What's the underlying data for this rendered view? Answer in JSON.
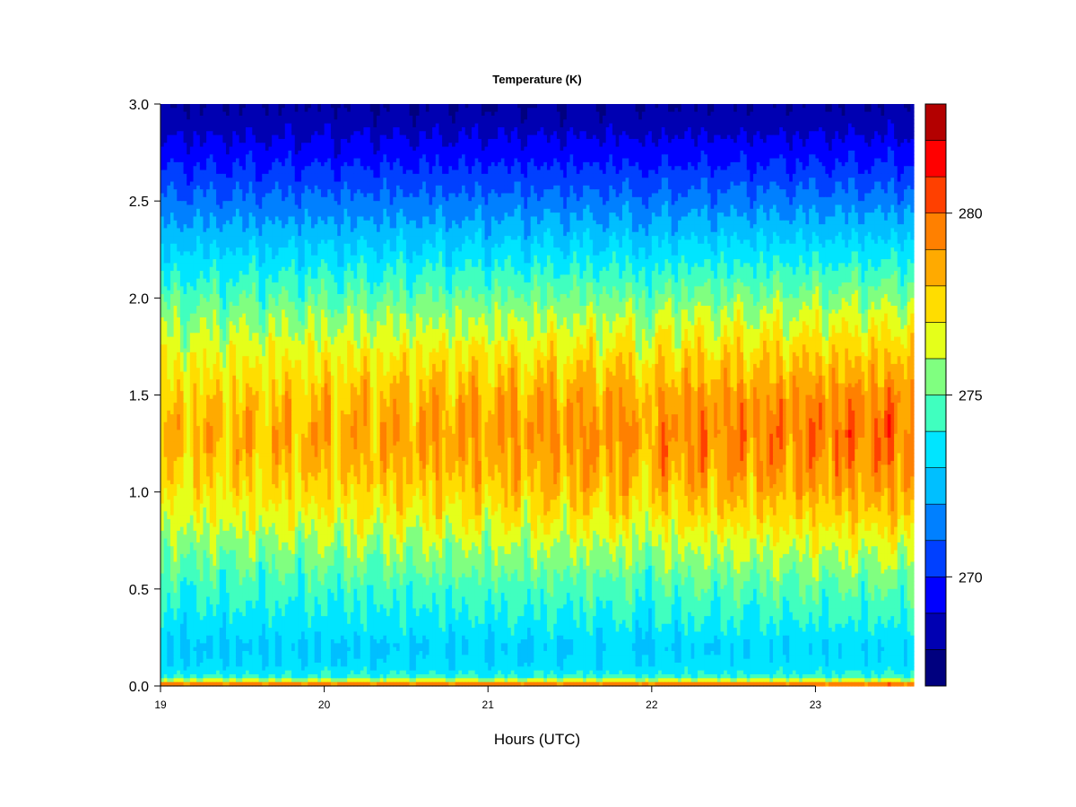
{
  "chart_data": {
    "type": "heatmap",
    "title": "Temperature (K)",
    "xlabel": "Hours (UTC)",
    "ylabel": "",
    "xlim": [
      19,
      23.6
    ],
    "ylim": [
      0,
      3.0
    ],
    "x_ticks": [
      19,
      20,
      21,
      22,
      23
    ],
    "x_tick_labels": [
      "19",
      "20",
      "21",
      "22",
      "23"
    ],
    "y_ticks": [
      0,
      0.5,
      1.0,
      1.5,
      2.0,
      2.5,
      3.0
    ],
    "y_tick_labels": [
      "0.0",
      "0.5",
      "1.0",
      "1.5",
      "2.0",
      "2.5",
      "3.0"
    ],
    "colorbar": {
      "min": 267,
      "max": 283,
      "levels": [
        267,
        268,
        269,
        270,
        271,
        272,
        273,
        274,
        275,
        276,
        277,
        278,
        279,
        280,
        281,
        282,
        283
      ],
      "colors": [
        "#00007f",
        "#0000b2",
        "#0000ff",
        "#0040ff",
        "#0080ff",
        "#00bfff",
        "#00e5ff",
        "#40ffbf",
        "#80ff80",
        "#e5ff1a",
        "#ffdd00",
        "#ffaa00",
        "#ff8000",
        "#ff4000",
        "#ff0000",
        "#b30000"
      ],
      "ticks": [
        270,
        275,
        280
      ],
      "tick_labels": [
        "270",
        "275",
        "280"
      ]
    },
    "profile": {
      "heights": [
        0,
        0.02,
        0.05,
        0.1,
        0.2,
        0.3,
        0.5,
        0.7,
        0.9,
        1.1,
        1.3,
        1.5,
        1.7,
        1.9,
        2.1,
        2.3,
        2.5,
        2.7,
        2.9,
        3.0
      ],
      "temperatures": [
        281.5,
        277,
        274,
        273.2,
        272.8,
        273.4,
        274.2,
        275.3,
        276.6,
        277.6,
        278.1,
        277.6,
        276.6,
        275.4,
        274.0,
        272.6,
        271.2,
        269.8,
        268.5,
        268.0
      ]
    },
    "warming_trend_k_per_hour": 0.35,
    "grid": false,
    "legend": "colorbar-right"
  }
}
